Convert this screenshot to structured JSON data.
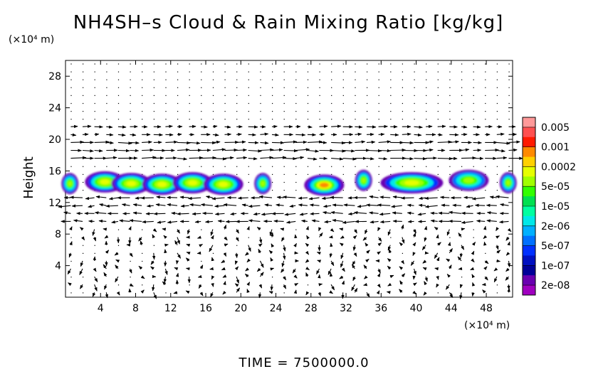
{
  "chart_data": {
    "type": "heatmap",
    "title": "NH4SH–s Cloud & Rain Mixing Ratio [kg/kg]",
    "x_unit": "(×10⁴ m)",
    "y_unit": "(×10⁴ m)",
    "ylabel": "Height",
    "xlim": [
      0,
      51
    ],
    "ylim": [
      0,
      30
    ],
    "xticks": [
      4,
      8,
      12,
      16,
      20,
      24,
      28,
      32,
      36,
      40,
      44,
      48
    ],
    "yticks": [
      4,
      8,
      12,
      16,
      20,
      24,
      28
    ],
    "footer": "TIME  =  7500000.0",
    "colorbar": {
      "labels": [
        "0.005",
        "0.001",
        "0.0002",
        "5e-05",
        "1e-05",
        "2e-06",
        "5e-07",
        "1e-07",
        "2e-08"
      ],
      "colors": [
        "#ff9999",
        "#ff5050",
        "#ff1a00",
        "#ff8a00",
        "#ffd000",
        "#e6ff00",
        "#a0ff00",
        "#32ff00",
        "#00e050",
        "#00ffa0",
        "#00e8e8",
        "#00b0ff",
        "#0070ff",
        "#0030ff",
        "#0010c0",
        "#000098",
        "#6a00b0",
        "#a000c0"
      ]
    },
    "cloud_blobs": [
      {
        "x": 0.5,
        "y": 14.4,
        "level": "1e-05"
      },
      {
        "x": 4.5,
        "y": 14.6,
        "level": "5e-05"
      },
      {
        "x": 7.5,
        "y": 14.4,
        "level": "5e-05"
      },
      {
        "x": 11.0,
        "y": 14.3,
        "level": "5e-05"
      },
      {
        "x": 14.5,
        "y": 14.5,
        "level": "5e-05"
      },
      {
        "x": 18.0,
        "y": 14.3,
        "level": "5e-05"
      },
      {
        "x": 22.5,
        "y": 14.4,
        "level": "1e-05"
      },
      {
        "x": 29.5,
        "y": 14.2,
        "level": "0.0002"
      },
      {
        "x": 34.0,
        "y": 14.8,
        "level": "1e-05"
      },
      {
        "x": 39.5,
        "y": 14.5,
        "level": "5e-05"
      },
      {
        "x": 46.0,
        "y": 14.8,
        "level": "1e-05"
      },
      {
        "x": 50.5,
        "y": 14.5,
        "level": "1e-05"
      }
    ]
  }
}
